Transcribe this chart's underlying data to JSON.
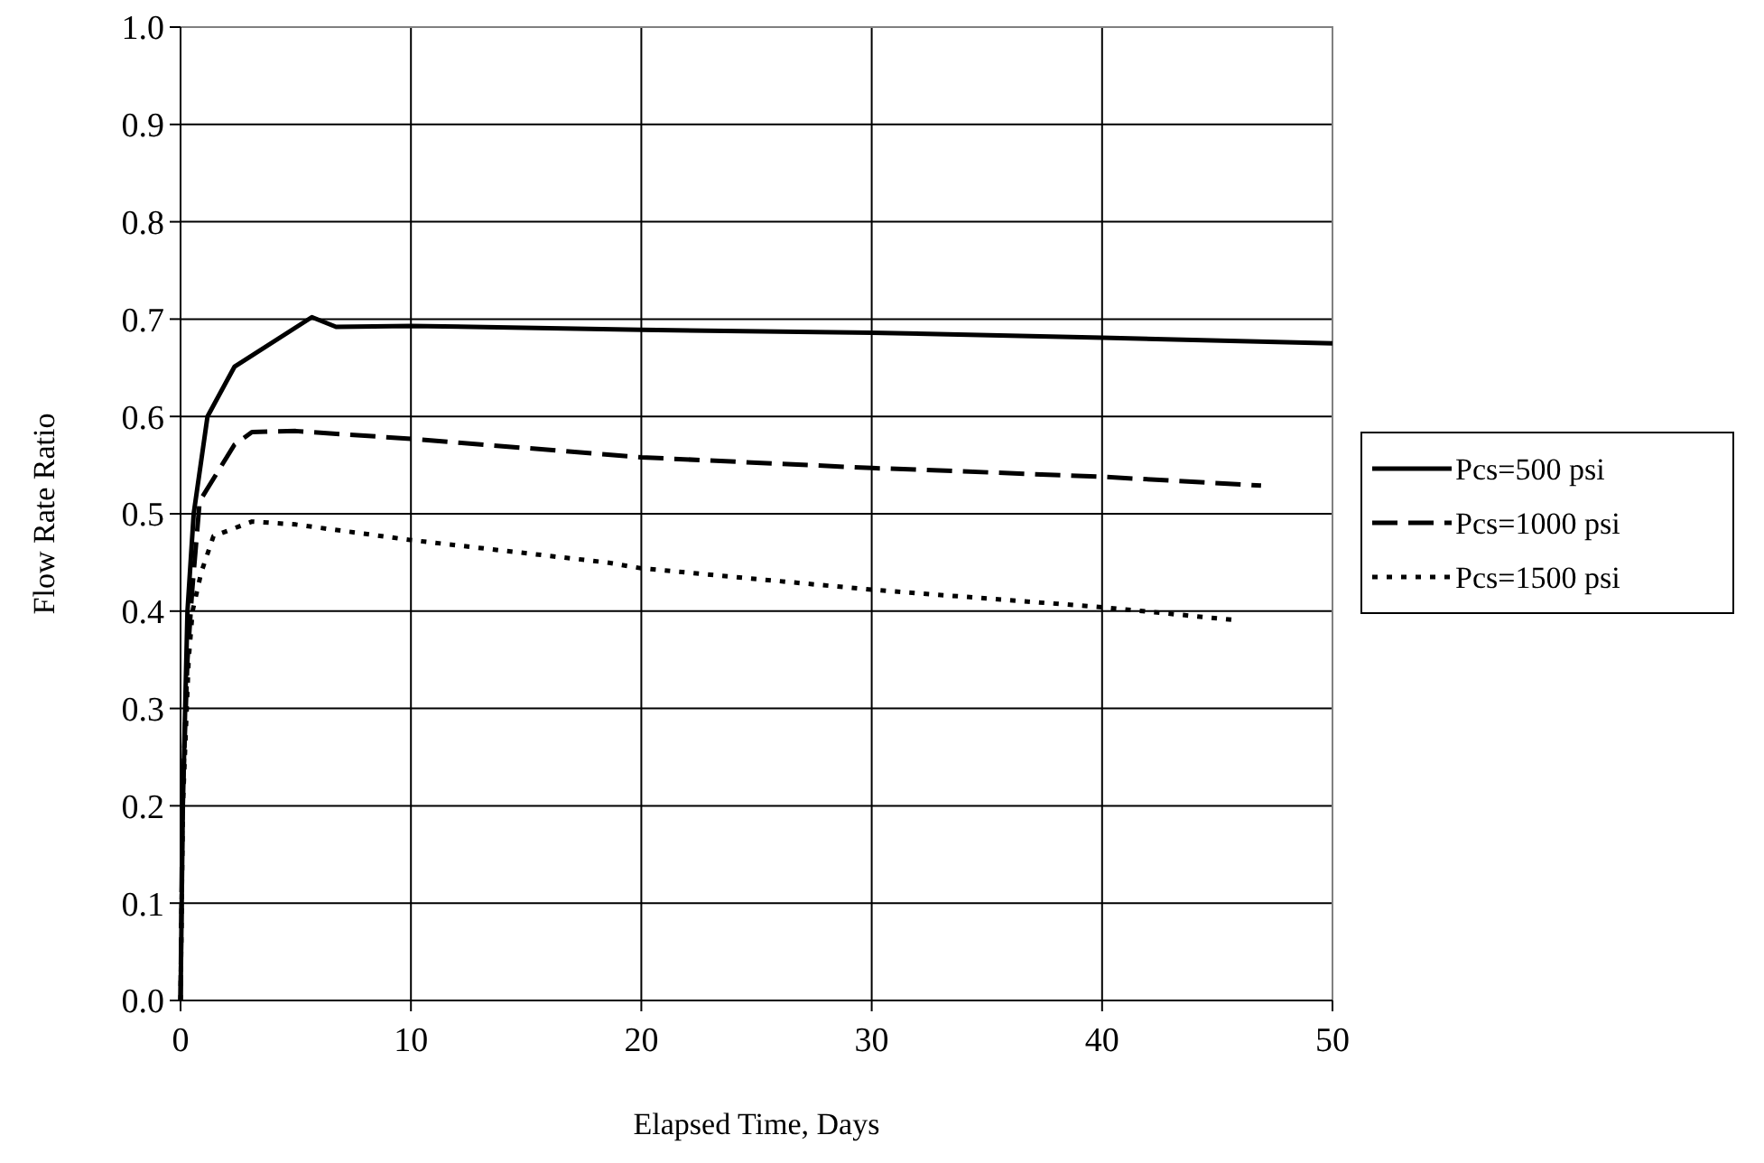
{
  "chart_data": {
    "type": "line",
    "xlabel": "Elapsed Time, Days",
    "ylabel": "Flow Rate Ratio",
    "xlim": [
      0,
      50
    ],
    "ylim": [
      0,
      1
    ],
    "xticks": [
      0,
      10,
      20,
      30,
      40,
      50
    ],
    "yticks": [
      {
        "value": 0,
        "label": "0.0"
      },
      {
        "value": 0.1,
        "label": "0.1"
      },
      {
        "value": 0.2,
        "label": "0.2"
      },
      {
        "value": 0.3,
        "label": "0.3"
      },
      {
        "value": 0.4,
        "label": "0.4"
      },
      {
        "value": 0.5,
        "label": "0.5"
      },
      {
        "value": 0.6,
        "label": "0.6"
      },
      {
        "value": 0.7,
        "label": "0.7"
      },
      {
        "value": 0.8,
        "label": "0.8"
      },
      {
        "value": 0.9,
        "label": "0.9"
      },
      {
        "value": 1,
        "label": "1.0"
      }
    ],
    "grid": true,
    "legend": "right",
    "series": [
      {
        "name": "Pcs=500 psi",
        "color": "#000000",
        "line_style": "solid",
        "x": [
          0,
          0.05,
          0.1,
          0.2,
          0.3,
          0.57,
          1.17,
          2.34,
          5.7,
          6.75,
          10,
          20,
          30,
          40,
          50
        ],
        "values": [
          0,
          0.1,
          0.2,
          0.3,
          0.4,
          0.5,
          0.6,
          0.651,
          0.702,
          0.692,
          0.693,
          0.689,
          0.686,
          0.681,
          0.675
        ]
      },
      {
        "name": "Pcs=1000 psi",
        "color": "#000000",
        "line_style": "dashed",
        "x": [
          0,
          0.08,
          0.3,
          0.5,
          0.83,
          2.34,
          3.1,
          5,
          10,
          20,
          30,
          32.4,
          40,
          46.9
        ],
        "values": [
          0,
          0.2,
          0.35,
          0.42,
          0.513,
          0.571,
          0.584,
          0.585,
          0.577,
          0.558,
          0.547,
          0.545,
          0.538,
          0.529
        ]
      },
      {
        "name": "Pcs=1500 psi",
        "color": "#000000",
        "line_style": "dotted",
        "x": [
          0,
          0.1,
          0.35,
          0.52,
          0.9,
          1.43,
          3.1,
          5,
          10,
          18.5,
          20,
          30,
          40,
          45.7
        ],
        "values": [
          0,
          0.2,
          0.35,
          0.4,
          0.44,
          0.477,
          0.492,
          0.489,
          0.473,
          0.45,
          0.444,
          0.422,
          0.404,
          0.391
        ]
      }
    ]
  }
}
